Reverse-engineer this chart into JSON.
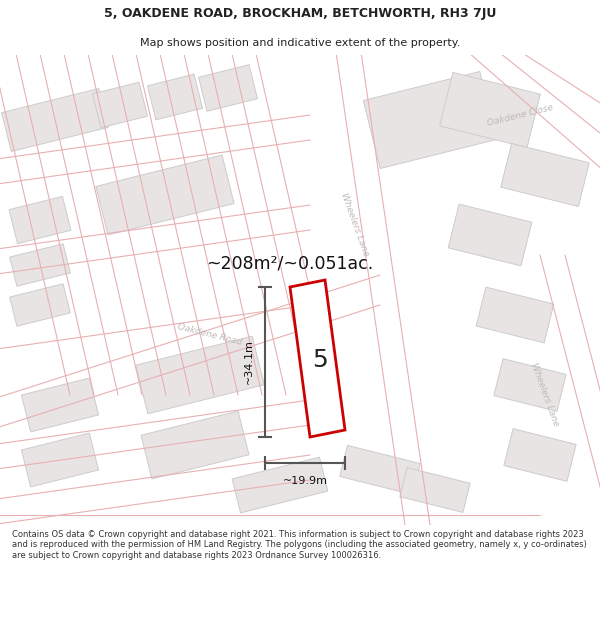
{
  "title_line1": "5, OAKDENE ROAD, BROCKHAM, BETCHWORTH, RH3 7JU",
  "title_line2": "Map shows position and indicative extent of the property.",
  "area_label": "~208m²/~0.051ac.",
  "plot_number": "5",
  "width_label": "~19.9m",
  "height_label": "~34.1m",
  "footer_text": "Contains OS data © Crown copyright and database right 2021. This information is subject to Crown copyright and database rights 2023 and is reproduced with the permission of HM Land Registry. The polygons (including the associated geometry, namely x, y co-ordinates) are subject to Crown copyright and database rights 2023 Ordnance Survey 100026316.",
  "bg_map": "#f7f5f5",
  "road_line_color": "#e8b0b0",
  "building_fill": "#e8e4e4",
  "building_stroke": "#cccccc",
  "plot_stroke": "#cc0000",
  "plot_fill": "#ffffff",
  "dim_color": "#555555",
  "label_road_color": "#c0b8b8",
  "title_color": "#222222",
  "footer_color": "#333333",
  "white": "#ffffff"
}
